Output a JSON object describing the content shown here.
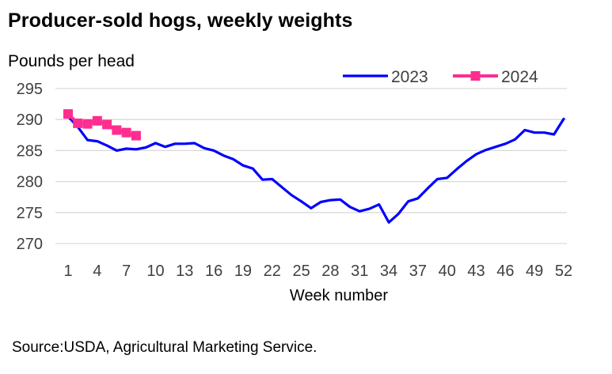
{
  "chart_data": {
    "type": "line",
    "title": "Producer-sold hogs, weekly weights",
    "ylabel": "Pounds per head",
    "xlabel": "Week number",
    "ylim": [
      270,
      295
    ],
    "xlim": [
      1,
      52
    ],
    "yticks": [
      270,
      275,
      280,
      285,
      290,
      295
    ],
    "xticks": [
      1,
      4,
      7,
      10,
      13,
      16,
      19,
      22,
      25,
      28,
      31,
      34,
      37,
      40,
      43,
      46,
      49,
      52
    ],
    "legend_position": "top-right",
    "grid": "horizontal",
    "series": [
      {
        "name": "2023",
        "color": "#0000ff",
        "marker": "none",
        "x": [
          1,
          2,
          3,
          4,
          5,
          6,
          7,
          8,
          9,
          10,
          11,
          12,
          13,
          14,
          15,
          16,
          17,
          18,
          19,
          20,
          21,
          22,
          23,
          24,
          25,
          26,
          27,
          28,
          29,
          30,
          31,
          32,
          33,
          34,
          35,
          36,
          37,
          38,
          39,
          40,
          41,
          42,
          43,
          44,
          45,
          46,
          47,
          48,
          49,
          50,
          51,
          52
        ],
        "values": [
          290.5,
          288.8,
          286.7,
          286.5,
          285.8,
          285.0,
          285.3,
          285.2,
          285.5,
          286.2,
          285.6,
          286.1,
          286.1,
          286.2,
          285.4,
          285.0,
          284.2,
          283.6,
          282.6,
          282.1,
          280.3,
          280.4,
          279.1,
          277.8,
          276.8,
          275.7,
          276.7,
          277.0,
          277.1,
          275.9,
          275.2,
          275.6,
          276.3,
          273.4,
          274.8,
          276.8,
          277.3,
          278.9,
          280.4,
          280.6,
          282.0,
          283.3,
          284.4,
          285.1,
          285.6,
          286.1,
          286.8,
          288.3,
          287.9,
          287.9,
          287.6,
          290.1
        ]
      },
      {
        "name": "2024",
        "color": "#ff2d8f",
        "marker": "square",
        "x": [
          1,
          2,
          3,
          4,
          5,
          6,
          7,
          8
        ],
        "values": [
          290.9,
          289.4,
          289.3,
          289.8,
          289.2,
          288.3,
          287.9,
          287.4
        ]
      }
    ],
    "source": "Source:USDA, Agricultural Marketing Service."
  }
}
